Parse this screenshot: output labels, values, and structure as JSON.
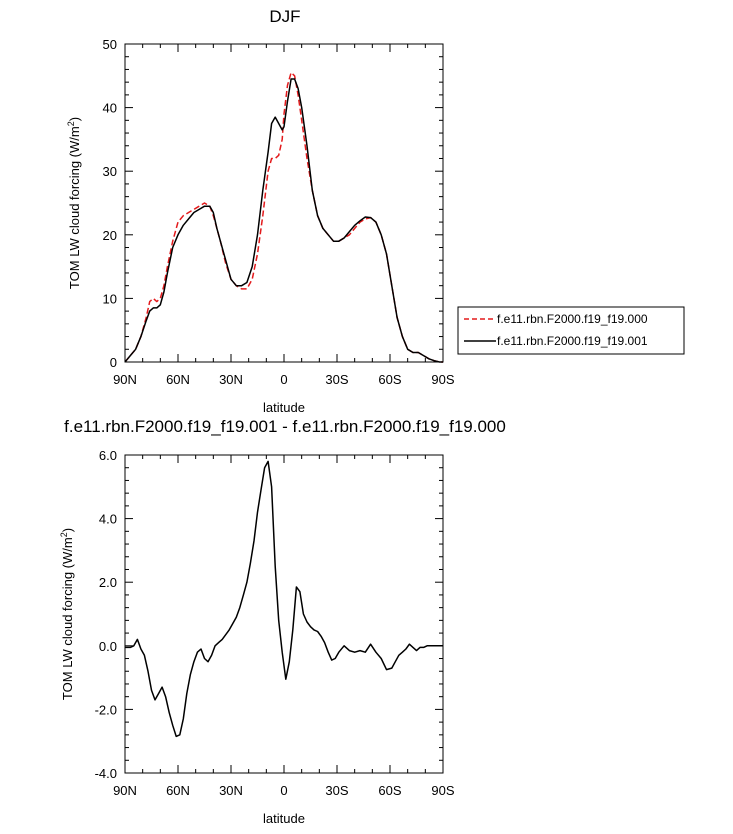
{
  "chart_data": [
    {
      "type": "line",
      "title": "DJF",
      "xlabel": "latitude",
      "ylabel": "TOM LW cloud forcing (W/m",
      "ylabel_sup": "2",
      "ylabel_end": ")",
      "xlim": [
        90,
        -90
      ],
      "ylim": [
        0,
        50
      ],
      "yticks": [
        0,
        10,
        20,
        30,
        40,
        50
      ],
      "xticks": [
        {
          "value": 90,
          "label": "90N"
        },
        {
          "value": 60,
          "label": "60N"
        },
        {
          "value": 30,
          "label": "30N"
        },
        {
          "value": 0,
          "label": "0"
        },
        {
          "value": -30,
          "label": "30S"
        },
        {
          "value": -60,
          "label": "60S"
        },
        {
          "value": -90,
          "label": "90S"
        }
      ],
      "legend": "right",
      "series": [
        {
          "name": "f.e11.rbn.F2000.f19_f19.000",
          "color": "#e31a1c",
          "dash": "dashed",
          "x": [
            90,
            87,
            84,
            81,
            78,
            76,
            74,
            72,
            70,
            68,
            66,
            63,
            60,
            57,
            54,
            51,
            48,
            45,
            42,
            40,
            38,
            36,
            33,
            30,
            27,
            24,
            21,
            18,
            15,
            12,
            9,
            7,
            5,
            3,
            1,
            0,
            -2,
            -4,
            -6,
            -8,
            -10,
            -13,
            -16,
            -19,
            -22,
            -25,
            -28,
            -31,
            -34,
            -37,
            -40,
            -43,
            -46,
            -49,
            -52,
            -55,
            -58,
            -61,
            -64,
            -67,
            -70,
            -73,
            -76,
            -79,
            -82,
            -85,
            -88,
            -90
          ],
          "y": [
            0,
            1,
            2,
            4,
            7,
            9.5,
            10,
            9.5,
            10,
            12,
            15,
            19,
            22,
            23,
            23.5,
            24,
            24.5,
            25,
            24.5,
            23,
            21,
            19,
            15.5,
            13,
            12,
            11.5,
            11.5,
            13,
            17,
            23,
            30,
            32,
            32,
            32.5,
            35,
            39,
            43.5,
            45.5,
            45,
            42,
            38,
            32,
            27,
            23,
            21,
            20,
            19,
            19,
            19.5,
            20,
            21,
            22,
            22.5,
            22.7,
            22,
            20,
            17,
            12,
            7,
            4,
            2,
            1.5,
            1.5,
            1,
            0.5,
            0.2,
            0,
            0
          ]
        },
        {
          "name": "f.e11.rbn.F2000.f19_f19.001",
          "color": "#000000",
          "dash": "solid",
          "x": [
            90,
            87,
            84,
            81,
            78,
            76,
            74,
            72,
            70,
            68,
            66,
            63,
            60,
            57,
            54,
            51,
            48,
            45,
            42,
            40,
            38,
            36,
            33,
            30,
            27,
            24,
            21,
            18,
            15,
            12,
            9,
            7,
            5,
            3,
            1,
            0,
            -2,
            -4,
            -6,
            -8,
            -10,
            -13,
            -16,
            -19,
            -22,
            -25,
            -28,
            -31,
            -34,
            -37,
            -40,
            -43,
            -46,
            -49,
            -52,
            -55,
            -58,
            -61,
            -64,
            -67,
            -70,
            -73,
            -76,
            -79,
            -82,
            -85,
            -88,
            -90
          ],
          "y": [
            0,
            1,
            2,
            4,
            6.5,
            8,
            8.5,
            8.5,
            9,
            11,
            14,
            18,
            20,
            21.5,
            22.5,
            23.5,
            24,
            24.5,
            24.5,
            23.5,
            21,
            19,
            16,
            13,
            12,
            12,
            12.5,
            15,
            20,
            27,
            33,
            37.5,
            38.5,
            37.5,
            36.5,
            37,
            41,
            44.5,
            44.5,
            43,
            40,
            34,
            27,
            23,
            21,
            20,
            19,
            19,
            19.5,
            20.5,
            21.5,
            22.2,
            22.8,
            22.7,
            22,
            20,
            17,
            12,
            7,
            4,
            2,
            1.5,
            1.5,
            1,
            0.5,
            0.2,
            0,
            0
          ]
        }
      ]
    },
    {
      "type": "line",
      "title": "f.e11.rbn.F2000.f19_f19.001 - f.e11.rbn.F2000.f19_f19.000",
      "xlabel": "latitude",
      "ylabel": "TOM LW cloud forcing (W/m",
      "ylabel_sup": "2",
      "ylabel_end": ")",
      "xlim": [
        90,
        -90
      ],
      "ylim": [
        -4,
        6
      ],
      "yticks": [
        {
          "value": -4,
          "label": "-4.0"
        },
        {
          "value": -2,
          "label": "-2.0"
        },
        {
          "value": 0,
          "label": "0.0"
        },
        {
          "value": 2,
          "label": "2.0"
        },
        {
          "value": 4,
          "label": "4.0"
        },
        {
          "value": 6,
          "label": "6.0"
        }
      ],
      "xticks": [
        {
          "value": 90,
          "label": "90N"
        },
        {
          "value": 60,
          "label": "60N"
        },
        {
          "value": 30,
          "label": "30N"
        },
        {
          "value": 0,
          "label": "0"
        },
        {
          "value": -30,
          "label": "30S"
        },
        {
          "value": -60,
          "label": "60S"
        },
        {
          "value": -90,
          "label": "90S"
        }
      ],
      "series": [
        {
          "color": "#000000",
          "dash": "solid",
          "x": [
            90,
            87,
            85,
            83,
            81,
            79,
            77,
            75,
            73,
            71,
            69,
            67,
            65,
            63,
            61,
            59,
            57,
            55,
            53,
            51,
            49,
            47,
            45,
            43,
            41,
            39,
            37,
            35,
            33,
            31,
            29,
            27,
            25,
            23,
            21,
            19,
            17,
            15,
            13,
            11,
            9,
            7,
            5,
            3,
            1,
            -1,
            -3,
            -5,
            -7,
            -9,
            -11,
            -13,
            -15,
            -17,
            -19,
            -21,
            -23,
            -25,
            -27,
            -29,
            -31,
            -34,
            -37,
            -40,
            -43,
            -46,
            -49,
            -52,
            -55,
            -58,
            -61,
            -63,
            -65,
            -67,
            -69,
            -71,
            -73,
            -75,
            -77,
            -79,
            -81,
            -83,
            -85,
            -87,
            -90
          ],
          "y": [
            -0.05,
            -0.05,
            0,
            0.2,
            -0.1,
            -0.3,
            -0.8,
            -1.4,
            -1.7,
            -1.5,
            -1.3,
            -1.6,
            -2.1,
            -2.5,
            -2.85,
            -2.8,
            -2.3,
            -1.5,
            -0.9,
            -0.5,
            -0.2,
            -0.1,
            -0.4,
            -0.5,
            -0.3,
            0,
            0.1,
            0.2,
            0.35,
            0.5,
            0.7,
            0.9,
            1.2,
            1.6,
            2.0,
            2.6,
            3.3,
            4.2,
            4.9,
            5.6,
            5.8,
            5.0,
            2.5,
            0.8,
            -0.2,
            -1.05,
            -0.5,
            0.5,
            1.85,
            1.7,
            1.0,
            0.75,
            0.6,
            0.5,
            0.45,
            0.3,
            0.1,
            -0.2,
            -0.45,
            -0.4,
            -0.2,
            0,
            -0.15,
            -0.2,
            -0.15,
            -0.2,
            0.05,
            -0.2,
            -0.4,
            -0.75,
            -0.7,
            -0.5,
            -0.3,
            -0.2,
            -0.1,
            0.05,
            -0.05,
            -0.15,
            -0.05,
            -0.05,
            0,
            0,
            0,
            0,
            0
          ]
        }
      ]
    }
  ]
}
